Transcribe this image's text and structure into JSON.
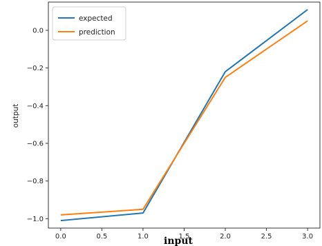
{
  "chart_data": {
    "type": "line",
    "title": "",
    "xlabel": "input",
    "ylabel": "output",
    "x": [
      0.0,
      1.0,
      2.0,
      3.0
    ],
    "series": [
      {
        "name": "expected",
        "color": "#1f77b4",
        "values": [
          -1.01,
          -0.97,
          -0.22,
          0.11
        ]
      },
      {
        "name": "prediction",
        "color": "#ff7f0e",
        "values": [
          -0.98,
          -0.95,
          -0.25,
          0.05
        ]
      }
    ],
    "xlim": [
      -0.15,
      3.15
    ],
    "ylim": [
      -1.05,
      0.15
    ],
    "xticks": [
      0.0,
      0.5,
      1.0,
      1.5,
      2.0,
      2.5,
      3.0
    ],
    "xtick_labels": [
      "0.0",
      "0.5",
      "1.0",
      "1.5",
      "2.0",
      "2.5",
      "3.0"
    ],
    "yticks": [
      0.0,
      -0.2,
      -0.4,
      -0.6,
      -0.8,
      -1.0
    ],
    "ytick_labels": [
      "0.0",
      "−0.2",
      "−0.4",
      "−0.6",
      "−0.8",
      "−1.0"
    ],
    "grid": false,
    "legend_position": "upper-left"
  }
}
